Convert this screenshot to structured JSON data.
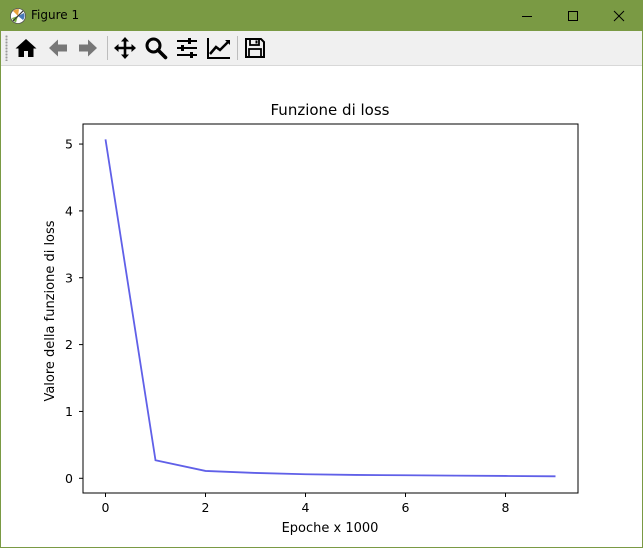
{
  "window": {
    "title": "Figure 1"
  },
  "toolbar": {
    "buttons": [
      {
        "icon": "home-icon"
      },
      {
        "icon": "back-arrow-icon"
      },
      {
        "icon": "forward-arrow-icon"
      },
      {
        "icon": "pan-move-icon"
      },
      {
        "icon": "zoom-magnifier-icon"
      },
      {
        "icon": "configure-subplots-icon"
      },
      {
        "icon": "edit-axis-icon"
      },
      {
        "icon": "save-floppy-icon"
      }
    ]
  },
  "chart_data": {
    "type": "line",
    "title": "Funzione di loss",
    "xlabel": "Epoche x 1000",
    "ylabel": "Valore della funzione di loss",
    "x": [
      0,
      1,
      2,
      3,
      4,
      5,
      6,
      7,
      8,
      9
    ],
    "series": [
      {
        "values": [
          5.07,
          0.27,
          0.11,
          0.08,
          0.06,
          0.05,
          0.045,
          0.04,
          0.035,
          0.03
        ],
        "color": "#6060e8"
      }
    ],
    "xlim": [
      -0.45,
      9.45
    ],
    "ylim": [
      -0.22,
      5.3
    ],
    "xticks": [
      0,
      2,
      4,
      6,
      8
    ],
    "yticks": [
      0,
      1,
      2,
      3,
      4,
      5
    ],
    "grid": false,
    "legend": "none"
  }
}
